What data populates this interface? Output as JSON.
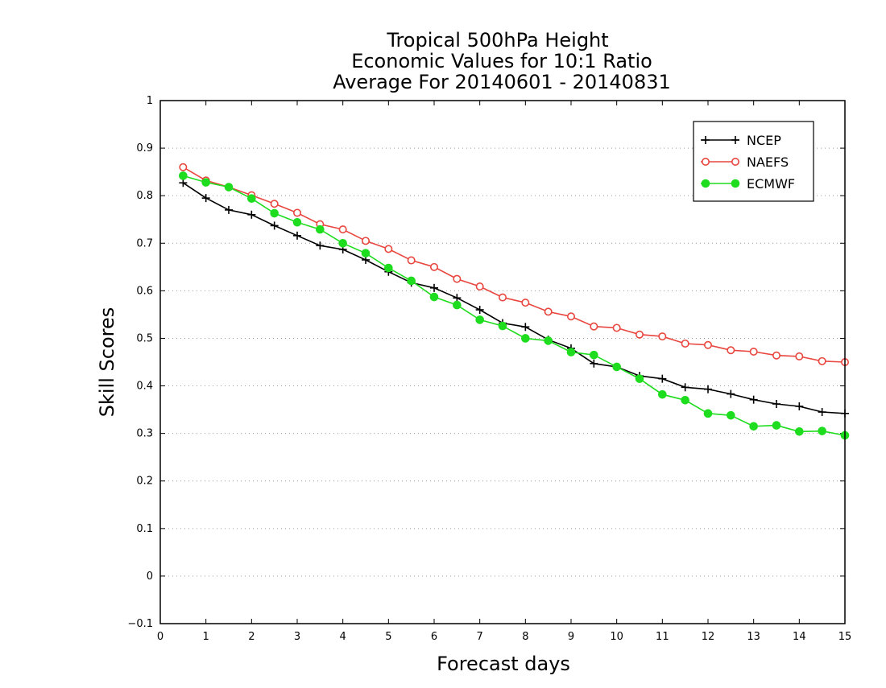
{
  "chart_data": {
    "type": "line",
    "title": [
      "Tropical 500hPa Height",
      "Economic Values for 10:1 Ratio",
      "Average For 20140601 - 20140831"
    ],
    "xlabel": "Forecast days",
    "ylabel": "Skill Scores",
    "xlim": [
      0,
      15
    ],
    "ylim": [
      -0.1,
      1
    ],
    "xticks": [
      0,
      1,
      2,
      3,
      4,
      5,
      6,
      7,
      8,
      9,
      10,
      11,
      12,
      13,
      14,
      15
    ],
    "yticks": [
      -0.1,
      0,
      0.1,
      0.2,
      0.3,
      0.4,
      0.5,
      0.6,
      0.7,
      0.8,
      0.9,
      1
    ],
    "grid": true,
    "legend_position": "top-right",
    "x": [
      0.5,
      1,
      1.5,
      2,
      2.5,
      3,
      3.5,
      4,
      4.5,
      5,
      5.5,
      6,
      6.5,
      7,
      7.5,
      8,
      8.5,
      9,
      9.5,
      10,
      10.5,
      11,
      11.5,
      12,
      12.5,
      13,
      13.5,
      14,
      14.5,
      15
    ],
    "series": [
      {
        "name": "NCEP",
        "color": "#000000",
        "marker": "plus",
        "values": [
          0.827,
          0.795,
          0.77,
          0.76,
          0.737,
          0.716,
          0.695,
          0.687,
          0.665,
          0.64,
          0.617,
          0.606,
          0.585,
          0.56,
          0.532,
          0.524,
          0.497,
          0.479,
          0.447,
          0.44,
          0.421,
          0.415,
          0.397,
          0.393,
          0.383,
          0.371,
          0.362,
          0.357,
          0.345,
          0.342
        ]
      },
      {
        "name": "NAEFS",
        "color": "#e8463e",
        "marker": "open-circle",
        "values": [
          0.86,
          0.832,
          0.818,
          0.801,
          0.783,
          0.764,
          0.74,
          0.729,
          0.705,
          0.688,
          0.664,
          0.65,
          0.625,
          0.609,
          0.586,
          0.575,
          0.556,
          0.546,
          0.525,
          0.522,
          0.508,
          0.504,
          0.489,
          0.486,
          0.475,
          0.472,
          0.464,
          0.462,
          0.452,
          0.45
        ]
      },
      {
        "name": "ECMWF",
        "color": "#1edc1e",
        "marker": "filled-circle",
        "values": [
          0.842,
          0.828,
          0.818,
          0.794,
          0.763,
          0.744,
          0.729,
          0.7,
          0.679,
          0.648,
          0.621,
          0.587,
          0.57,
          0.539,
          0.526,
          0.5,
          0.495,
          0.471,
          0.465,
          0.44,
          0.415,
          0.382,
          0.37,
          0.342,
          0.338,
          0.315,
          0.317,
          0.304,
          0.305,
          0.296
        ]
      }
    ]
  }
}
